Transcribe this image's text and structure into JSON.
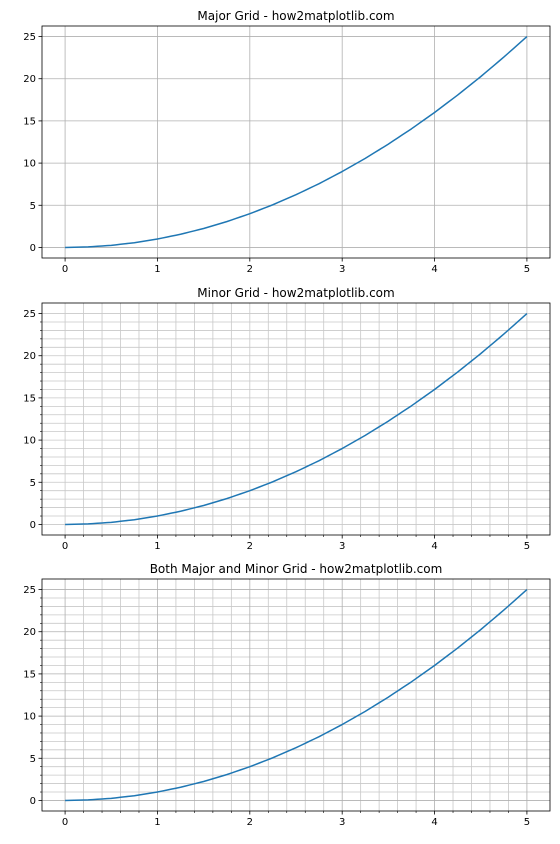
{
  "chart_data": [
    {
      "type": "line",
      "title": "Major Grid - how2matplotlib.com",
      "grid": "major",
      "xlabel": "",
      "ylabel": "",
      "xlim": [
        -0.25,
        5.25
      ],
      "ylim": [
        -1.25,
        26.25
      ],
      "x_ticks": [
        "0",
        "1",
        "2",
        "3",
        "4",
        "5"
      ],
      "y_ticks": [
        "0",
        "5",
        "10",
        "15",
        "20",
        "25"
      ],
      "color": "#1f77b4",
      "series": [
        {
          "x": [
            0,
            0.25,
            0.5,
            0.75,
            1,
            1.25,
            1.5,
            1.75,
            2,
            2.25,
            2.5,
            2.75,
            3,
            3.25,
            3.5,
            3.75,
            4,
            4.25,
            4.5,
            4.75,
            5
          ],
          "y": [
            0,
            0.0625,
            0.25,
            0.5625,
            1,
            1.5625,
            2.25,
            3.0625,
            4,
            5.0625,
            6.25,
            7.5625,
            9,
            10.5625,
            12.25,
            14.0625,
            16,
            18.0625,
            20.25,
            22.5625,
            25
          ]
        }
      ]
    },
    {
      "type": "line",
      "title": "Minor Grid - how2matplotlib.com",
      "grid": "minor",
      "xlabel": "",
      "ylabel": "",
      "xlim": [
        -0.25,
        5.25
      ],
      "ylim": [
        -1.25,
        26.25
      ],
      "x_ticks": [
        "0",
        "1",
        "2",
        "3",
        "4",
        "5"
      ],
      "y_ticks": [
        "0",
        "5",
        "10",
        "15",
        "20",
        "25"
      ],
      "color": "#1f77b4",
      "series": [
        {
          "x": [
            0,
            0.25,
            0.5,
            0.75,
            1,
            1.25,
            1.5,
            1.75,
            2,
            2.25,
            2.5,
            2.75,
            3,
            3.25,
            3.5,
            3.75,
            4,
            4.25,
            4.5,
            4.75,
            5
          ],
          "y": [
            0,
            0.0625,
            0.25,
            0.5625,
            1,
            1.5625,
            2.25,
            3.0625,
            4,
            5.0625,
            6.25,
            7.5625,
            9,
            10.5625,
            12.25,
            14.0625,
            16,
            18.0625,
            20.25,
            22.5625,
            25
          ]
        }
      ]
    },
    {
      "type": "line",
      "title": "Both Major and Minor Grid - how2matplotlib.com",
      "grid": "both",
      "xlabel": "",
      "ylabel": "",
      "xlim": [
        -0.25,
        5.25
      ],
      "ylim": [
        -1.25,
        26.25
      ],
      "x_ticks": [
        "0",
        "1",
        "2",
        "3",
        "4",
        "5"
      ],
      "y_ticks": [
        "0",
        "5",
        "10",
        "15",
        "20",
        "25"
      ],
      "color": "#1f77b4",
      "series": [
        {
          "x": [
            0,
            0.25,
            0.5,
            0.75,
            1,
            1.25,
            1.5,
            1.75,
            2,
            2.25,
            2.5,
            2.75,
            3,
            3.25,
            3.5,
            3.75,
            4,
            4.25,
            4.5,
            4.75,
            5
          ],
          "y": [
            0,
            0.0625,
            0.25,
            0.5625,
            1,
            1.5625,
            2.25,
            3.0625,
            4,
            5.0625,
            6.25,
            7.5625,
            9,
            10.5625,
            12.25,
            14.0625,
            16,
            18.0625,
            20.25,
            22.5625,
            25
          ]
        }
      ]
    }
  ]
}
